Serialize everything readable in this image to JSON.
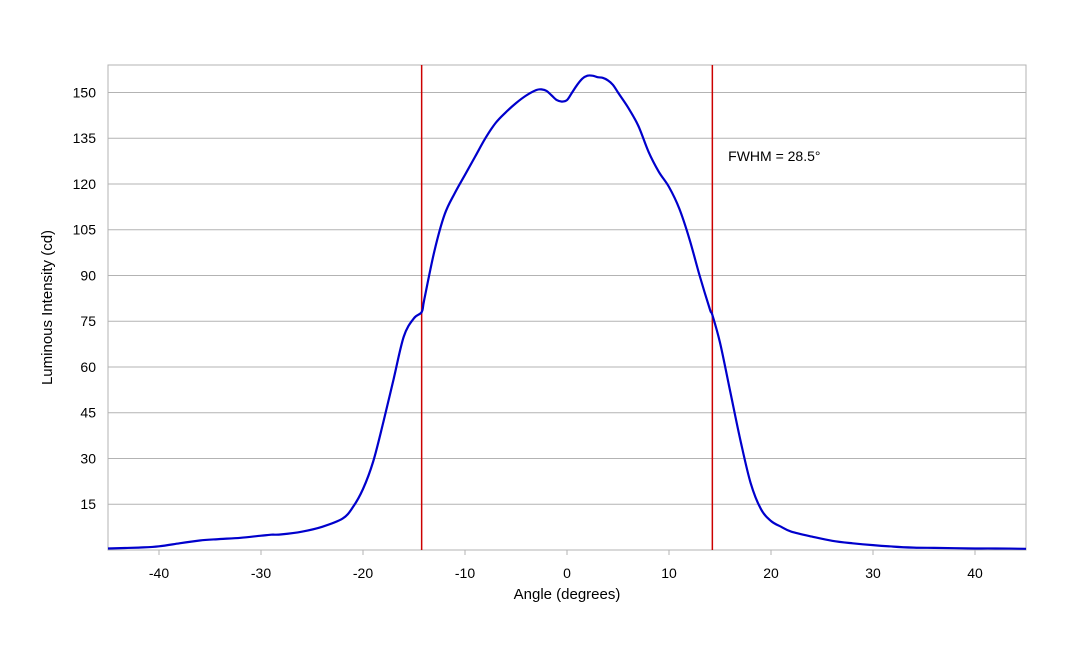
{
  "chart_data": {
    "type": "line",
    "xlabel": "Angle (degrees)",
    "ylabel": "Luminous Intensity (cd)",
    "xlim": [
      -45,
      45
    ],
    "ylim": [
      0,
      159
    ],
    "x_ticks": [
      -40,
      -30,
      -20,
      -10,
      0,
      10,
      20,
      30,
      40
    ],
    "y_ticks": [
      15,
      30,
      45,
      60,
      75,
      90,
      105,
      120,
      135,
      150
    ],
    "grid": "horizontal",
    "legend": "none",
    "series": [
      {
        "color": "#0000cc",
        "x": [
          -45,
          -42,
          -40,
          -38,
          -36,
          -34,
          -32,
          -30,
          -29,
          -28,
          -26,
          -24,
          -22,
          -21,
          -20,
          -19,
          -18,
          -17,
          -16,
          -15,
          -14.25,
          -14,
          -13,
          -12,
          -11,
          -10,
          -9,
          -8,
          -7,
          -6,
          -5,
          -4,
          -3,
          -2.5,
          -2,
          -1.5,
          -1,
          -0.5,
          0,
          0.5,
          1,
          1.5,
          2,
          2.5,
          3,
          3.5,
          4,
          4.5,
          5,
          6,
          7,
          8,
          9,
          10,
          11,
          12,
          13,
          14,
          14.25,
          15,
          16,
          17,
          18,
          19,
          20,
          21,
          22,
          24,
          26,
          28,
          30,
          32,
          34,
          36,
          38,
          40,
          42,
          45
        ],
        "y": [
          0.5,
          0.8,
          1.2,
          2.2,
          3.1,
          3.6,
          4.0,
          4.7,
          5.0,
          5.1,
          6.0,
          7.6,
          10.3,
          14.0,
          20.0,
          29.0,
          42.0,
          56.0,
          70.0,
          76.0,
          78.0,
          82.0,
          98.0,
          110.0,
          117.0,
          123.0,
          129.0,
          135.0,
          140.0,
          143.5,
          146.5,
          149.0,
          150.8,
          151.0,
          150.5,
          149.0,
          147.5,
          147.0,
          147.5,
          150.0,
          152.5,
          154.5,
          155.5,
          155.5,
          155.0,
          154.8,
          154.0,
          152.5,
          150.0,
          145.0,
          139.0,
          130.5,
          124.0,
          119.0,
          112.0,
          102.0,
          90.0,
          79.0,
          77.0,
          68.0,
          52.0,
          36.0,
          22.0,
          13.5,
          9.5,
          7.6,
          6.0,
          4.4,
          3.0,
          2.2,
          1.6,
          1.1,
          0.8,
          0.7,
          0.6,
          0.5,
          0.5,
          0.4
        ]
      }
    ],
    "vlines": [
      {
        "x": -14.25,
        "color": "#cc0000"
      },
      {
        "x": 14.25,
        "color": "#cc0000"
      }
    ],
    "annotations": [
      {
        "text": "FWHM = 28.5°",
        "x": 15.8,
        "y": 127.5
      }
    ],
    "colors": {
      "grid": "#b3b3b3",
      "frame": "#b3b3b3",
      "line": "#0000cc",
      "marker_lines": "#cc0000"
    }
  }
}
